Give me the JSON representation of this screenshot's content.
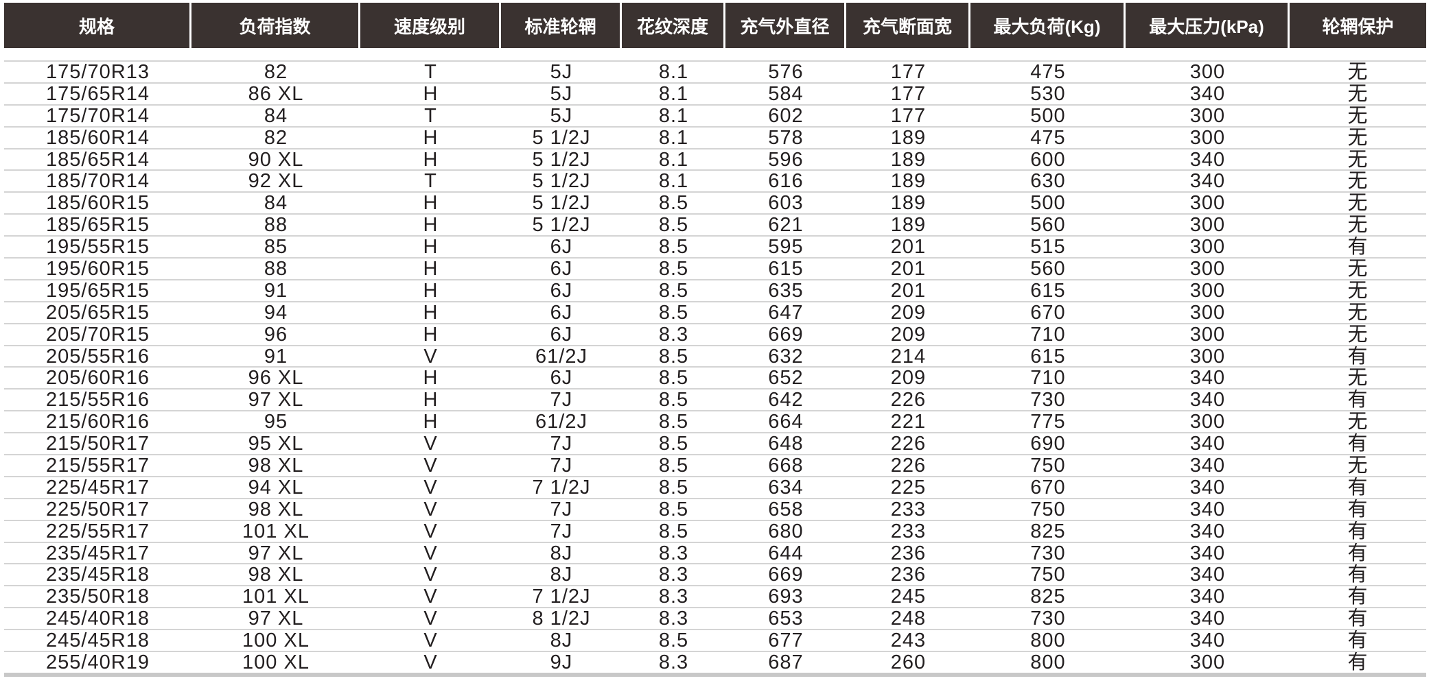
{
  "table": {
    "headers": [
      "规格",
      "负荷指数",
      "速度级别",
      "标准轮辋",
      "花纹深度",
      "充气外直径",
      "充气断面宽",
      "最大负荷(Kg)",
      "最大压力(kPa)",
      "轮辋保护"
    ],
    "rows": [
      [
        "175/70R13",
        "82",
        "T",
        "5J",
        "8.1",
        "576",
        "177",
        "475",
        "300",
        "无"
      ],
      [
        "175/65R14",
        "86 XL",
        "H",
        "5J",
        "8.1",
        "584",
        "177",
        "530",
        "340",
        "无"
      ],
      [
        "175/70R14",
        "84",
        "T",
        "5J",
        "8.1",
        "602",
        "177",
        "500",
        "300",
        "无"
      ],
      [
        "185/60R14",
        "82",
        "H",
        "5 1/2J",
        "8.1",
        "578",
        "189",
        "475",
        "300",
        "无"
      ],
      [
        "185/65R14",
        "90 XL",
        "H",
        "5 1/2J",
        "8.1",
        "596",
        "189",
        "600",
        "340",
        "无"
      ],
      [
        "185/70R14",
        "92 XL",
        "T",
        "5 1/2J",
        "8.1",
        "616",
        "189",
        "630",
        "340",
        "无"
      ],
      [
        "185/60R15",
        "84",
        "H",
        "5 1/2J",
        "8.5",
        "603",
        "189",
        "500",
        "300",
        "无"
      ],
      [
        "185/65R15",
        "88",
        "H",
        "5 1/2J",
        "8.5",
        "621",
        "189",
        "560",
        "300",
        "无"
      ],
      [
        "195/55R15",
        "85",
        "H",
        "6J",
        "8.5",
        "595",
        "201",
        "515",
        "300",
        "有"
      ],
      [
        "195/60R15",
        "88",
        "H",
        "6J",
        "8.5",
        "615",
        "201",
        "560",
        "300",
        "无"
      ],
      [
        "195/65R15",
        "91",
        "H",
        "6J",
        "8.5",
        "635",
        "201",
        "615",
        "300",
        "无"
      ],
      [
        "205/65R15",
        "94",
        "H",
        "6J",
        "8.5",
        "647",
        "209",
        "670",
        "300",
        "无"
      ],
      [
        "205/70R15",
        "96",
        "H",
        "6J",
        "8.3",
        "669",
        "209",
        "710",
        "300",
        "无"
      ],
      [
        "205/55R16",
        "91",
        "V",
        "61/2J",
        "8.5",
        "632",
        "214",
        "615",
        "300",
        "有"
      ],
      [
        "205/60R16",
        "96 XL",
        "H",
        "6J",
        "8.5",
        "652",
        "209",
        "710",
        "340",
        "无"
      ],
      [
        "215/55R16",
        "97 XL",
        "H",
        "7J",
        "8.5",
        "642",
        "226",
        "730",
        "340",
        "有"
      ],
      [
        "215/60R16",
        "95",
        "H",
        "61/2J",
        "8.5",
        "664",
        "221",
        "775",
        "300",
        "无"
      ],
      [
        "215/50R17",
        "95 XL",
        "V",
        "7J",
        "8.5",
        "648",
        "226",
        "690",
        "340",
        "有"
      ],
      [
        "215/55R17",
        "98 XL",
        "V",
        "7J",
        "8.5",
        "668",
        "226",
        "750",
        "340",
        "无"
      ],
      [
        "225/45R17",
        "94 XL",
        "V",
        "7 1/2J",
        "8.5",
        "634",
        "225",
        "670",
        "340",
        "有"
      ],
      [
        "225/50R17",
        "98 XL",
        "V",
        "7J",
        "8.5",
        "658",
        "233",
        "750",
        "340",
        "有"
      ],
      [
        "225/55R17",
        "101 XL",
        "V",
        "7J",
        "8.5",
        "680",
        "233",
        "825",
        "340",
        "有"
      ],
      [
        "235/45R17",
        "97 XL",
        "V",
        "8J",
        "8.3",
        "644",
        "236",
        "730",
        "340",
        "有"
      ],
      [
        "235/45R18",
        "98 XL",
        "V",
        "8J",
        "8.3",
        "669",
        "236",
        "750",
        "340",
        "有"
      ],
      [
        "235/50R18",
        "101 XL",
        "V",
        "7 1/2J",
        "8.3",
        "693",
        "245",
        "825",
        "340",
        "有"
      ],
      [
        "245/40R18",
        "97 XL",
        "V",
        "8 1/2J",
        "8.3",
        "653",
        "248",
        "730",
        "340",
        "有"
      ],
      [
        "245/45R18",
        "100 XL",
        "V",
        "8J",
        "8.5",
        "677",
        "243",
        "800",
        "340",
        "有"
      ],
      [
        "255/40R19",
        "100 XL",
        "V",
        "9J",
        "8.3",
        "687",
        "260",
        "800",
        "300",
        "有"
      ]
    ]
  }
}
